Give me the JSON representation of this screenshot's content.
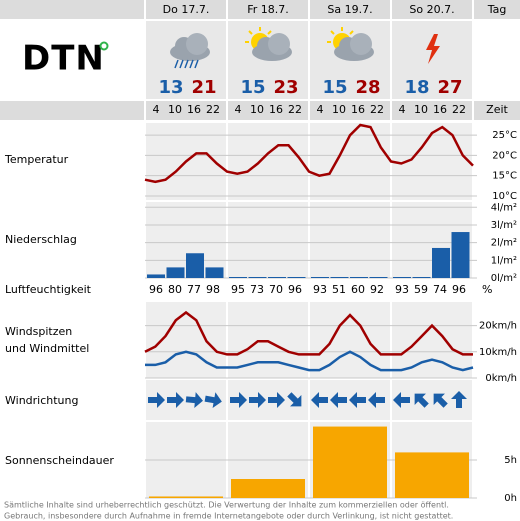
{
  "header": {
    "logo": "DTN",
    "day_label": "Tag",
    "time_label": "Zeit"
  },
  "hours": [
    4,
    10,
    16,
    22
  ],
  "days": [
    {
      "name": "Do 17.7.",
      "min": 13,
      "max": 21,
      "humidity": [
        96,
        80,
        77,
        98
      ],
      "precipitation": [
        0.2,
        0.6,
        1.4,
        0.6
      ],
      "wind_direction": [
        0,
        0,
        5,
        10
      ],
      "sunshine": 0.2
    },
    {
      "name": "Fr 18.7.",
      "min": 15,
      "max": 23,
      "humidity": [
        95,
        73,
        70,
        96
      ],
      "precipitation": [
        0.05,
        0.05,
        0.05,
        0.05
      ],
      "wind_direction": [
        0,
        0,
        0,
        45
      ],
      "sunshine": 2.5
    },
    {
      "name": "Sa 19.7.",
      "min": 15,
      "max": 28,
      "humidity": [
        93,
        51,
        60,
        92
      ],
      "precipitation": [
        0,
        0,
        0,
        0
      ],
      "wind_direction": [
        180,
        180,
        180,
        180
      ],
      "sunshine": 9.4
    },
    {
      "name": "So 20.7.",
      "min": 18,
      "max": 27,
      "humidity": [
        93,
        59,
        74,
        96
      ],
      "precipitation": [
        0,
        0.05,
        1.7,
        2.6
      ],
      "wind_direction": [
        180,
        225,
        225,
        270
      ],
      "sunshine": 6
    }
  ],
  "temperature": {
    "label": "Temperatur",
    "x": [
      0,
      3,
      6,
      9,
      12,
      15,
      18,
      21,
      24,
      27,
      30,
      33,
      36,
      39,
      42,
      45,
      48,
      51,
      54,
      57,
      60,
      63,
      66,
      69,
      72,
      75,
      78,
      81,
      84,
      87,
      90,
      93,
      96
    ],
    "values": [
      14,
      13.5,
      14,
      16,
      18.5,
      20.5,
      20.5,
      18,
      16,
      15.5,
      16,
      18,
      20.5,
      22.5,
      22.5,
      19.5,
      16,
      15,
      15.5,
      20,
      25,
      27.5,
      27,
      22,
      18.5,
      18,
      19,
      22,
      25.5,
      27,
      25,
      20,
      17.5
    ],
    "color": "#a00000",
    "ylim": [
      9,
      28
    ],
    "ticks": [
      {
        "value": 25,
        "label": "25°C"
      },
      {
        "value": 20,
        "label": "20°C"
      },
      {
        "value": 15,
        "label": "15°C"
      },
      {
        "value": 10,
        "label": "10°C"
      }
    ]
  },
  "precipitation": {
    "label": "Niederschlag",
    "color": "#1a5ea8",
    "ylim": [
      0,
      4.3
    ],
    "ticks": [
      {
        "value": 4,
        "label": "4l/m²"
      },
      {
        "value": 3,
        "label": "3l/m²"
      },
      {
        "value": 2,
        "label": "2l/m²"
      },
      {
        "value": 1,
        "label": "1l/m²"
      },
      {
        "value": 0,
        "label": "0l/m²"
      }
    ]
  },
  "humidity": {
    "label": "Luftfeuchtigkeit",
    "unit": "%"
  },
  "wind": {
    "label": [
      "Windspitzen",
      "und Windmittel"
    ],
    "x": [
      0,
      3,
      6,
      9,
      12,
      15,
      18,
      21,
      24,
      27,
      30,
      33,
      36,
      39,
      42,
      45,
      48,
      51,
      54,
      57,
      60,
      63,
      66,
      69,
      72,
      75,
      78,
      81,
      84,
      87,
      90,
      93,
      96
    ],
    "series": [
      {
        "name": "Windspitzen",
        "color": "#a00000",
        "values": [
          10,
          12,
          16,
          22,
          25,
          22,
          14,
          10,
          9,
          9,
          11,
          14,
          14,
          12,
          10,
          9,
          9,
          9,
          13,
          20,
          24,
          20,
          13,
          9,
          9,
          9,
          12,
          16,
          20,
          16,
          11,
          9,
          9
        ]
      },
      {
        "name": "Windmittel",
        "color": "#1a5ea8",
        "values": [
          5,
          5,
          6,
          9,
          10,
          9,
          6,
          4,
          4,
          4,
          5,
          6,
          6,
          6,
          5,
          4,
          3,
          3,
          5,
          8,
          10,
          8,
          5,
          3,
          3,
          3,
          4,
          6,
          7,
          6,
          4,
          3,
          4
        ]
      }
    ],
    "ylim": [
      0,
      29
    ],
    "ticks": [
      {
        "value": 20,
        "label": "20km/h"
      },
      {
        "value": 10,
        "label": "10km/h"
      },
      {
        "value": 0,
        "label": "0km/h"
      }
    ]
  },
  "wind_direction": {
    "label": "Windrichtung",
    "color": "#1a5ea8"
  },
  "sunshine": {
    "label": "Sonnenscheindauer",
    "color": "#f7a600",
    "ylim": [
      0,
      10
    ],
    "ticks": [
      {
        "value": 5,
        "label": "5h"
      },
      {
        "value": 0,
        "label": "0h"
      }
    ]
  },
  "footer": [
    "Sämtliche Inhalte sind urheberrechtlich geschützt. Die Verwertung der Inhalte zum kommerziellen oder öffentl.",
    "Gebrauch, insbesondere durch Aufnahme in fremde Internetangebote oder durch Verlinkung, ist nicht gestattet."
  ]
}
